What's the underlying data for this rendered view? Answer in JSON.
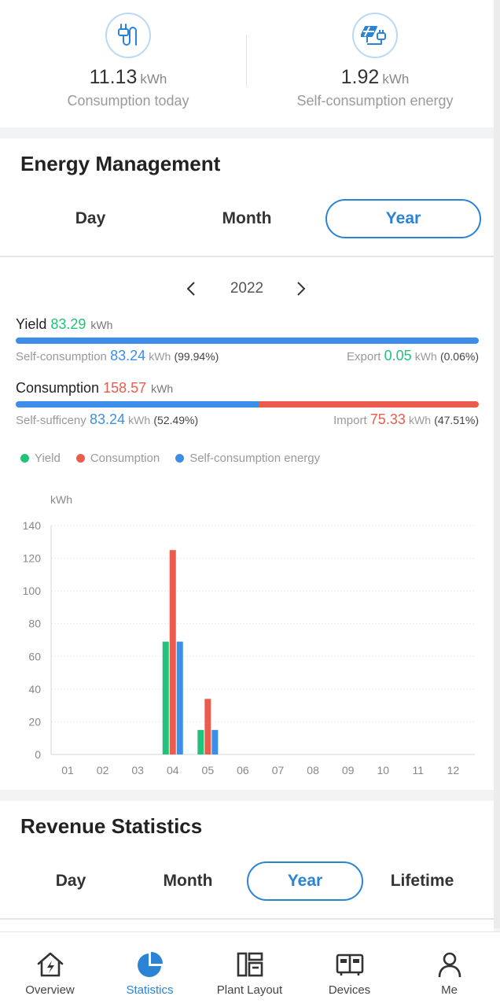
{
  "summary": {
    "consumption_today": {
      "value": "11.13",
      "unit": "kWh",
      "label": "Consumption today",
      "icon": "plug-icon"
    },
    "self_consumption": {
      "value": "1.92",
      "unit": "kWh",
      "label": "Self-consumption energy",
      "icon": "solar-plug-icon"
    }
  },
  "energy": {
    "title": "Energy Management",
    "tabs": [
      {
        "label": "Day",
        "active": false
      },
      {
        "label": "Month",
        "active": false
      },
      {
        "label": "Year",
        "active": true
      }
    ],
    "year": "2022",
    "prev_icon": "chevron-left-icon",
    "next_icon": "chevron-right-icon",
    "yield": {
      "label": "Yield",
      "value": "83.29",
      "unit": "kWh",
      "self_label": "Self-consumption",
      "self_value": "83.24",
      "self_unit": "kWh",
      "self_pct": "(99.94%)",
      "export_label": "Export",
      "export_value": "0.05",
      "export_unit": "kWh",
      "export_pct": "(0.06%)",
      "bar_fraction": 0.9994
    },
    "consumption": {
      "label": "Consumption",
      "value": "158.57",
      "unit": "kWh",
      "self_label": "Self-sufficeny",
      "self_value": "83.24",
      "self_unit": "kWh",
      "self_pct": "(52.49%)",
      "import_label": "Import",
      "import_value": "75.33",
      "import_unit": "kWh",
      "import_pct": "(47.51%)",
      "bar_fraction": 0.5249
    },
    "legend": [
      {
        "label": "Yield",
        "color": "#1fc47a"
      },
      {
        "label": "Consumption",
        "color": "#ec5c4d"
      },
      {
        "label": "Self-consumption energy",
        "color": "#3d8ee8"
      }
    ]
  },
  "chart_data": {
    "type": "bar",
    "ylabel": "kWh",
    "ylim": [
      0,
      140
    ],
    "yticks": [
      0,
      20,
      40,
      60,
      80,
      100,
      120,
      140
    ],
    "categories": [
      "01",
      "02",
      "03",
      "04",
      "05",
      "06",
      "07",
      "08",
      "09",
      "10",
      "11",
      "12"
    ],
    "series": [
      {
        "name": "Yield",
        "color": "#1fc47a",
        "values": [
          0,
          0,
          0,
          69,
          15,
          0,
          0,
          0,
          0,
          0,
          0,
          0
        ]
      },
      {
        "name": "Consumption",
        "color": "#ec5c4d",
        "values": [
          0,
          0,
          0,
          125,
          34,
          0,
          0,
          0,
          0,
          0,
          0,
          0
        ]
      },
      {
        "name": "Self-consumption energy",
        "color": "#3d8ee8",
        "values": [
          0,
          0,
          0,
          69,
          15,
          0,
          0,
          0,
          0,
          0,
          0,
          0
        ]
      }
    ],
    "grid": true
  },
  "revenue": {
    "title": "Revenue Statistics",
    "tabs": [
      {
        "label": "Day",
        "active": false
      },
      {
        "label": "Month",
        "active": false
      },
      {
        "label": "Year",
        "active": true
      },
      {
        "label": "Lifetime",
        "active": false
      }
    ]
  },
  "bottom_nav": [
    {
      "label": "Overview",
      "icon": "house-bolt-icon",
      "active": false
    },
    {
      "label": "Statistics",
      "icon": "pie-chart-icon",
      "active": true
    },
    {
      "label": "Plant Layout",
      "icon": "layout-icon",
      "active": false
    },
    {
      "label": "Devices",
      "icon": "devices-icon",
      "active": false
    },
    {
      "label": "Me",
      "icon": "person-icon",
      "active": false
    }
  ]
}
